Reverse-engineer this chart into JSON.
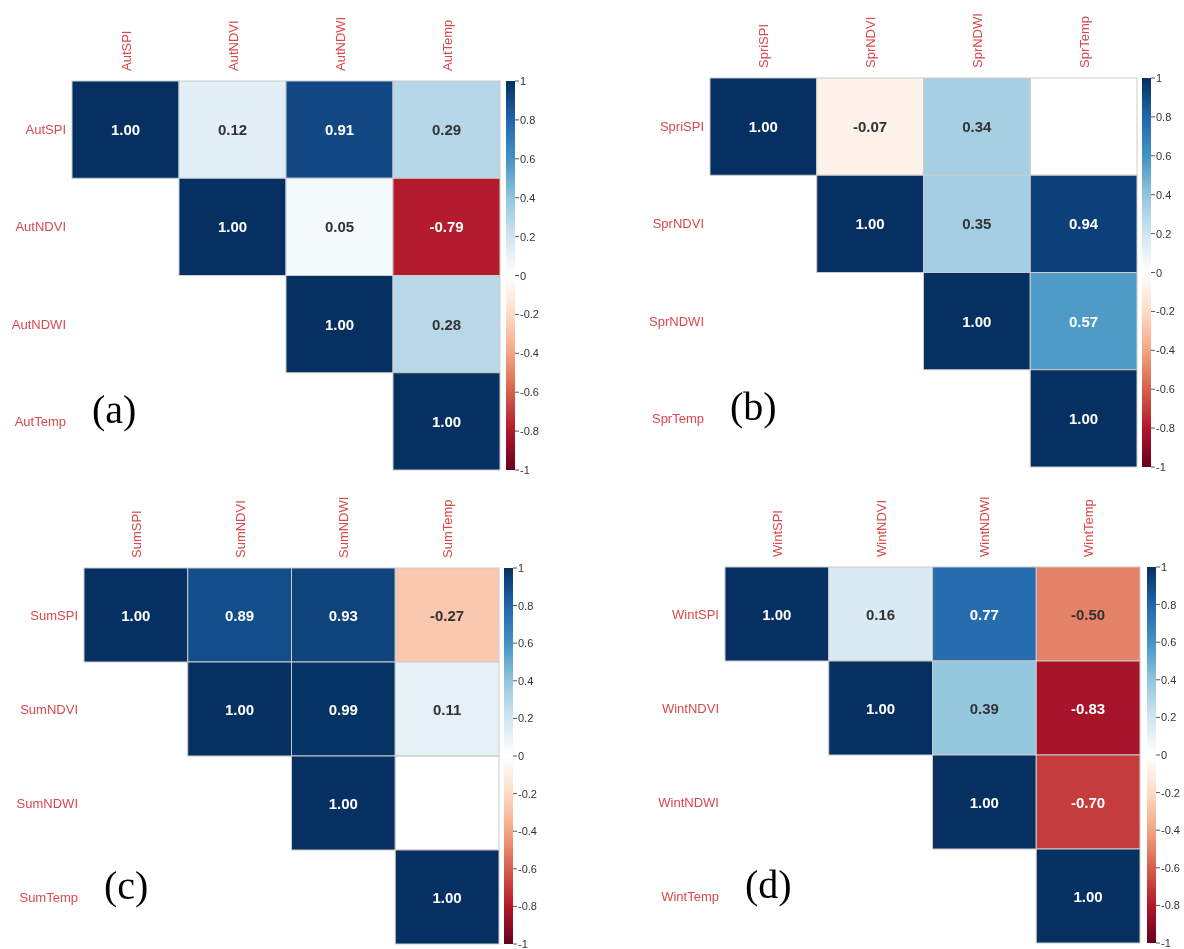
{
  "chart_data": [
    {
      "type": "heatmap",
      "title": "(a)",
      "categories": [
        "AutSPI",
        "AutNDVI",
        "AutNDWI",
        "AutTemp"
      ],
      "y_categories": [
        "AutSPI",
        "AutNDVI",
        "AutNDWI",
        "AutTemp"
      ],
      "cells": [
        [
          1,
          0.12,
          0.91,
          0.29
        ],
        [
          null,
          1,
          0.05,
          -0.79
        ],
        [
          null,
          null,
          1,
          0.28
        ],
        [
          null,
          null,
          null,
          1
        ]
      ],
      "cell_labels": [
        [
          "1.00",
          "0.12",
          "0.91",
          "0.29"
        ],
        [
          null,
          "1.00",
          "0.05",
          "-0.79"
        ],
        [
          null,
          null,
          "1.00",
          "0.28"
        ],
        [
          null,
          null,
          null,
          "1.00"
        ]
      ],
      "clim": [
        -1,
        1
      ],
      "cticks": [
        1,
        0.8,
        0.6,
        0.4,
        0.2,
        0,
        -0.2,
        -0.4,
        -0.6,
        -0.8,
        -1
      ]
    },
    {
      "type": "heatmap",
      "title": "(b)",
      "categories": [
        "SpriSPI",
        "SprNDVI",
        "SprNDWI",
        "SprTemp"
      ],
      "y_categories": [
        "SpriSPI",
        "SprNDVI",
        "SprNDWI",
        "SprTemp"
      ],
      "cells": [
        [
          1,
          -0.07,
          0.34,
          null
        ],
        [
          null,
          1,
          0.35,
          0.94
        ],
        [
          null,
          null,
          1,
          0.57
        ],
        [
          null,
          null,
          null,
          1
        ]
      ],
      "cell_labels": [
        [
          "1.00",
          "-0.07",
          "0.34",
          null
        ],
        [
          null,
          "1.00",
          "0.35",
          "0.94"
        ],
        [
          null,
          null,
          "1.00",
          "0.57"
        ],
        [
          null,
          null,
          null,
          "1.00"
        ]
      ],
      "clim": [
        -1,
        1
      ],
      "cticks": [
        1,
        0.8,
        0.6,
        0.4,
        0.2,
        0,
        -0.2,
        -0.4,
        -0.6,
        -0.8,
        -1
      ]
    },
    {
      "type": "heatmap",
      "title": "(c)",
      "categories": [
        "SumSPI",
        "SumNDVI",
        "SumNDWI",
        "SumTemp"
      ],
      "y_categories": [
        "SumSPI",
        "SumNDVI",
        "SumNDWI",
        "SumTemp"
      ],
      "cells": [
        [
          1,
          0.89,
          0.93,
          -0.27
        ],
        [
          null,
          1,
          0.99,
          0.11
        ],
        [
          null,
          null,
          1,
          null
        ],
        [
          null,
          null,
          null,
          1
        ]
      ],
      "cell_labels": [
        [
          "1.00",
          "0.89",
          "0.93",
          "-0.27"
        ],
        [
          null,
          "1.00",
          "0.99",
          "0.11"
        ],
        [
          null,
          null,
          "1.00",
          null
        ],
        [
          null,
          null,
          null,
          "1.00"
        ]
      ],
      "clim": [
        -1,
        1
      ],
      "cticks": [
        1,
        0.8,
        0.6,
        0.4,
        0.2,
        0,
        -0.2,
        -0.4,
        -0.6,
        -0.8,
        -1
      ]
    },
    {
      "type": "heatmap",
      "title": "(d)",
      "categories": [
        "WintSPI",
        "WintNDVI",
        "WintNDWI",
        "WintTemp"
      ],
      "y_categories": [
        "WintSPI",
        "WintNDVI",
        "WintNDWI",
        "WintTemp"
      ],
      "cells": [
        [
          1,
          0.16,
          0.77,
          -0.5
        ],
        [
          null,
          1,
          0.39,
          -0.83
        ],
        [
          null,
          null,
          1,
          -0.7
        ],
        [
          null,
          null,
          null,
          1
        ]
      ],
      "cell_labels": [
        [
          "1.00",
          "0.16",
          "0.77",
          "-0.50"
        ],
        [
          null,
          "1.00",
          "0.39",
          "-0.83"
        ],
        [
          null,
          null,
          "1.00",
          "-0.70"
        ],
        [
          null,
          null,
          null,
          "1.00"
        ]
      ],
      "clim": [
        -1,
        1
      ],
      "cticks": [
        1,
        0.8,
        0.6,
        0.4,
        0.2,
        0,
        -0.2,
        -0.4,
        -0.6,
        -0.8,
        -1
      ]
    }
  ]
}
